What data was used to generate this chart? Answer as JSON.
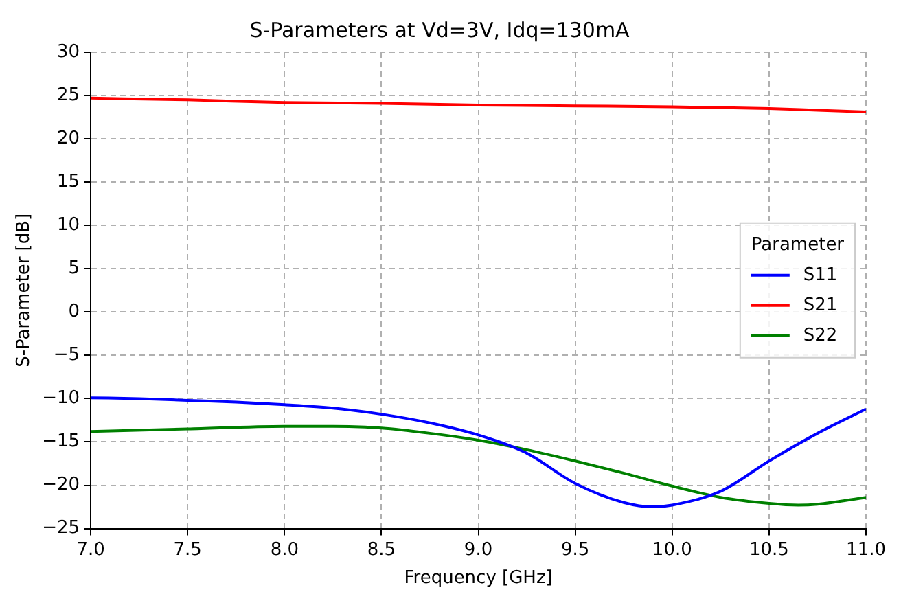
{
  "chart_data": {
    "type": "line",
    "title": "S-Parameters at Vd=3V, Idq=130mA",
    "xlabel": "Frequency [GHz]",
    "ylabel": "S-Parameter [dB]",
    "legend_title": "Parameter",
    "series": [
      {
        "name": "S11",
        "color": "#0000ff",
        "x": [
          7.0,
          7.25,
          7.5,
          7.75,
          8.0,
          8.25,
          8.5,
          8.75,
          9.0,
          9.25,
          9.5,
          9.75,
          9.9,
          10.0,
          10.25,
          10.5,
          10.75,
          11.0
        ],
        "values": [
          -9.9,
          -10.0,
          -10.2,
          -10.4,
          -10.7,
          -11.1,
          -11.8,
          -12.8,
          -14.2,
          -16.3,
          -19.8,
          -22.0,
          -22.5,
          -22.3,
          -20.7,
          -17.2,
          -14.0,
          -11.2
        ]
      },
      {
        "name": "S21",
        "color": "#ff0000",
        "x": [
          7.0,
          7.5,
          8.0,
          8.5,
          9.0,
          9.5,
          10.0,
          10.5,
          10.75,
          11.0
        ],
        "values": [
          24.7,
          24.5,
          24.2,
          24.1,
          23.9,
          23.8,
          23.7,
          23.5,
          23.3,
          23.1
        ]
      },
      {
        "name": "S22",
        "color": "#008000",
        "x": [
          7.0,
          7.5,
          8.0,
          8.25,
          8.5,
          8.75,
          9.0,
          9.25,
          9.5,
          9.75,
          10.0,
          10.25,
          10.5,
          10.65,
          10.75,
          11.0
        ],
        "values": [
          -13.8,
          -13.5,
          -13.2,
          -13.2,
          -13.4,
          -14.0,
          -14.8,
          -15.9,
          -17.2,
          -18.6,
          -20.1,
          -21.4,
          -22.1,
          -22.3,
          -22.2,
          -21.4
        ]
      }
    ],
    "xlim": [
      7,
      11
    ],
    "xticks": [
      {
        "value": 7,
        "label": "7.0"
      },
      7.5,
      {
        "value": 8,
        "label": "8.0"
      },
      8.5,
      {
        "value": 9,
        "label": "9.0"
      },
      9.5,
      {
        "value": 10,
        "label": "10.0"
      },
      10.5,
      {
        "value": 11,
        "label": "11.0"
      }
    ],
    "ylim": [
      -25,
      30
    ],
    "yticks": [
      -25,
      -20,
      -15,
      -10,
      -5,
      0,
      5,
      10,
      15,
      20,
      25,
      30
    ],
    "grid": true,
    "legend": "center right",
    "marker": "none",
    "line_style": "solid"
  }
}
